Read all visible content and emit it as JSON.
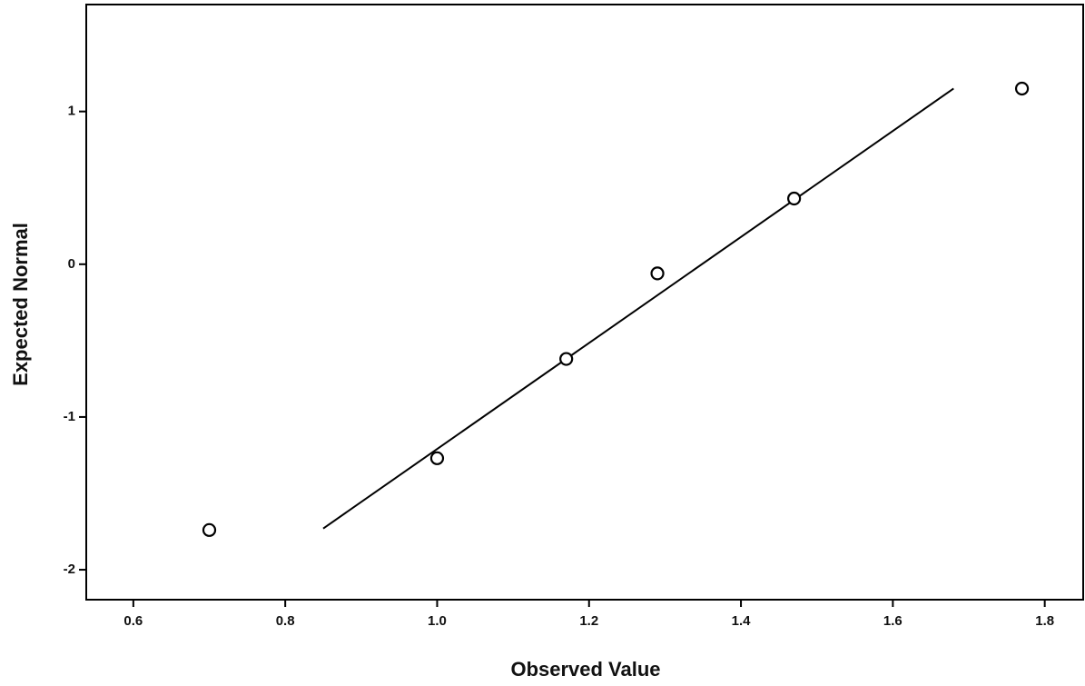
{
  "chart_data": {
    "type": "scatter",
    "x_label": "Observed Value",
    "y_label": "Expected Normal",
    "x": [
      0.7,
      1.0,
      1.17,
      1.29,
      1.47,
      1.77
    ],
    "values": [
      -1.74,
      -1.27,
      -0.62,
      -0.06,
      0.43,
      1.15
    ],
    "fit_line": {
      "x": [
        0.85,
        1.68
      ],
      "values": [
        -1.73,
        1.15
      ]
    },
    "color": "#000000",
    "xlim": [
      0.538,
      1.853
    ],
    "ylim": [
      -2.196,
      1.7
    ],
    "xticks": [
      0.6,
      0.8,
      {
        "value": 1,
        "label": "1.0"
      },
      1.2,
      1.4,
      1.6,
      1.8
    ],
    "yticks": [
      -2,
      -1,
      0,
      1
    ]
  }
}
